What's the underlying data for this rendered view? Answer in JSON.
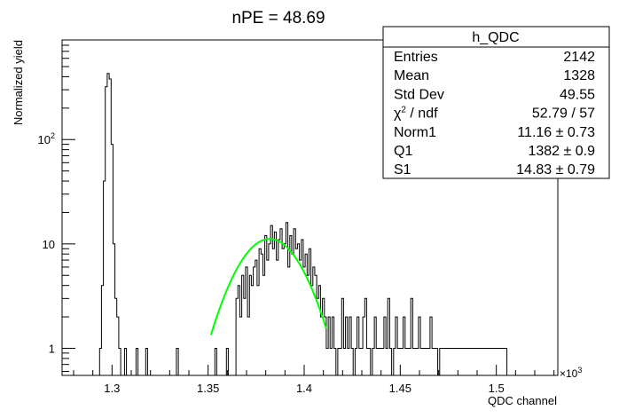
{
  "chart_data": {
    "type": "histogram",
    "title": "nPE = 48.69",
    "xlabel": "QDC channel",
    "ylabel": "Normalized yield",
    "x_multiplier": "×10",
    "x_multiplier_exp": "3",
    "x_scale": "linear",
    "y_scale": "log",
    "xlim": [
      1.274,
      1.532
    ],
    "ylim": [
      0.55,
      900
    ],
    "x_ticks": [
      "1.3",
      "1.35",
      "1.4",
      "1.45",
      "1.5"
    ],
    "x_tick_values": [
      1.3,
      1.35,
      1.4,
      1.45,
      1.5
    ],
    "y_ticks": [
      "1",
      "10",
      "10"
    ],
    "y_tick_sup": [
      "",
      "",
      "2"
    ],
    "y_tick_values": [
      1,
      10,
      100
    ],
    "grid": false,
    "histogram_color": "#000000",
    "fit_color": "#00ff00",
    "bins": {
      "x_start": 1.2935,
      "bin_width": 0.001,
      "values": [
        1,
        4,
        40,
        320,
        430,
        380,
        90,
        10,
        3,
        2,
        1,
        0,
        0,
        1,
        0,
        0,
        0,
        0,
        0,
        1,
        0,
        0,
        0,
        0,
        1,
        0,
        0,
        0,
        0,
        0,
        0,
        0,
        0,
        0,
        0,
        0,
        0,
        0,
        0,
        0,
        1,
        0,
        0,
        0,
        0,
        0,
        0,
        0,
        0,
        0,
        0,
        0,
        0,
        0,
        0,
        0,
        0,
        0,
        0,
        0,
        1,
        0,
        0,
        0,
        0,
        0,
        1,
        0,
        0,
        0,
        0,
        3,
        4,
        2,
        5,
        3,
        6,
        2,
        5,
        4,
        6,
        7,
        4,
        9,
        8,
        5,
        12,
        7,
        10,
        15,
        9,
        13,
        7,
        11,
        14,
        9,
        10,
        16,
        6,
        12,
        8,
        14,
        9,
        10,
        7,
        11,
        6,
        8,
        5,
        9,
        4,
        6,
        5,
        3,
        4,
        2,
        3,
        2,
        1,
        2,
        1,
        2,
        1,
        0,
        1,
        1,
        3,
        1,
        2,
        1,
        2,
        1,
        0,
        1,
        2,
        1,
        1,
        2,
        3,
        1,
        1,
        0,
        1,
        2,
        1,
        1,
        1,
        1,
        2,
        1,
        3,
        1,
        0,
        1,
        2,
        1,
        1,
        1,
        2,
        1,
        1,
        1,
        3,
        1,
        1,
        1,
        2,
        1,
        1,
        1,
        1,
        1,
        2,
        1,
        1,
        1,
        0,
        1,
        1,
        1,
        1,
        1,
        1,
        1,
        1,
        1,
        1,
        1,
        1,
        1,
        1,
        1,
        1,
        1,
        1,
        1,
        1,
        1,
        1,
        1,
        1,
        1,
        1,
        1,
        1,
        1,
        1,
        1,
        1,
        1,
        1,
        1
      ]
    },
    "fit": {
      "function": "gaussian",
      "norm": 11.16,
      "mean": 1.382,
      "sigma": 0.01483,
      "x_range": [
        1.3515,
        1.4115
      ]
    },
    "stats_box": {
      "title": "h_QDC",
      "rows": [
        {
          "label": "Entries",
          "label_sup": "",
          "label_rest": "",
          "value": "2142"
        },
        {
          "label": "Mean",
          "label_sup": "",
          "label_rest": "",
          "value": "1328"
        },
        {
          "label": "Std Dev",
          "label_sup": "",
          "label_rest": "",
          "value": "49.55"
        },
        {
          "label": "χ",
          "label_sup": "2",
          "label_rest": " / ndf",
          "value": "52.79 / 57"
        },
        {
          "label": "Norm1",
          "label_sup": "",
          "label_rest": "",
          "value": "11.16 ± 0.73"
        },
        {
          "label": "Q1",
          "label_sup": "",
          "label_rest": "",
          "value": "1382 ± 0.9"
        },
        {
          "label": "S1",
          "label_sup": "",
          "label_rest": "",
          "value": "14.83 ± 0.79"
        }
      ]
    }
  }
}
